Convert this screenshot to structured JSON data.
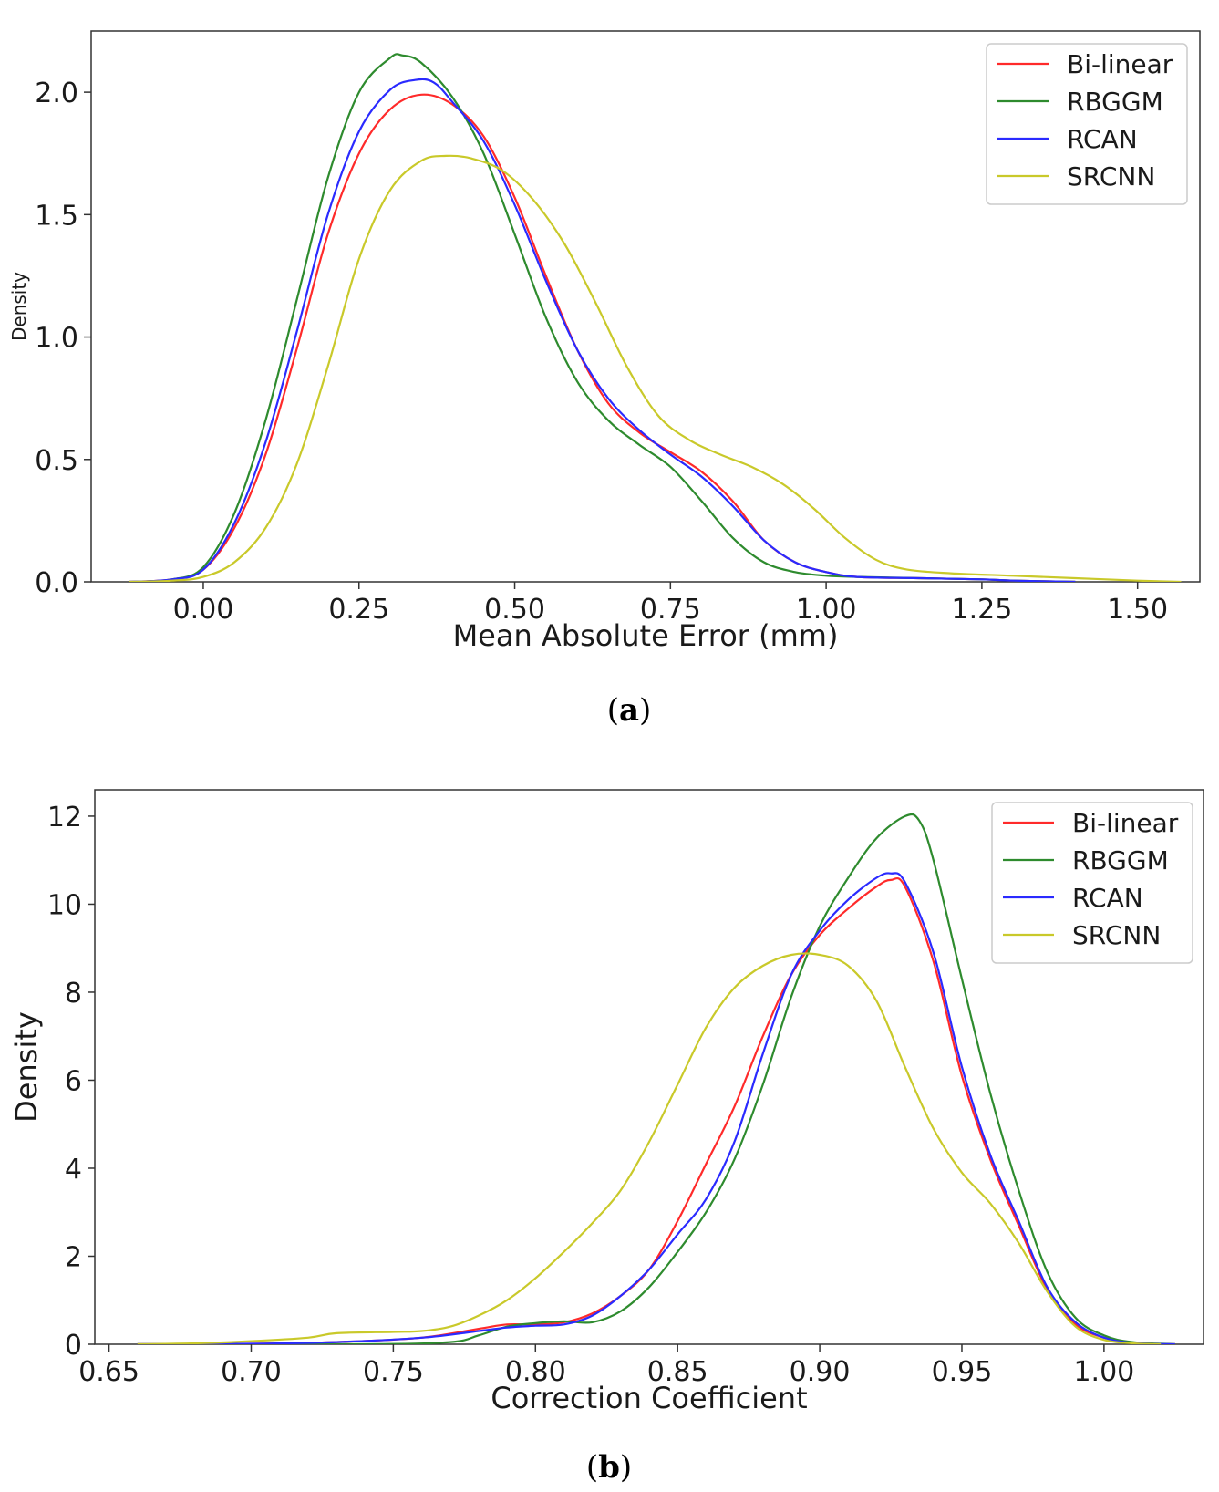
{
  "colors": {
    "Bi-linear": "#ff2a2a",
    "RBGGM": "#2e8b2e",
    "RCAN": "#2a2aff",
    "SRCNN": "#c9c92a"
  },
  "chart_data": [
    {
      "type": "line",
      "kind": "kde",
      "caption_letter": "a",
      "xlabel": "Mean Absolute Error (mm)",
      "ylabel": "Density",
      "xlim": [
        -0.18,
        1.6
      ],
      "ylim": [
        0,
        2.25
      ],
      "xticks": [
        0.0,
        0.25,
        0.5,
        0.75,
        1.0,
        1.25,
        1.5
      ],
      "xtick_labels": [
        "0.00",
        "0.25",
        "0.50",
        "0.75",
        "1.00",
        "1.25",
        "1.50"
      ],
      "yticks": [
        0.0,
        0.5,
        1.0,
        1.5,
        2.0
      ],
      "ytick_labels": [
        "0.0",
        "0.5",
        "1.0",
        "1.5",
        "2.0"
      ],
      "legend_position": "top-right",
      "series": [
        {
          "name": "Bi-linear",
          "points": [
            [
              -0.12,
              0
            ],
            [
              -0.05,
              0.01
            ],
            [
              0,
              0.05
            ],
            [
              0.05,
              0.22
            ],
            [
              0.1,
              0.52
            ],
            [
              0.15,
              0.95
            ],
            [
              0.2,
              1.42
            ],
            [
              0.25,
              1.75
            ],
            [
              0.3,
              1.93
            ],
            [
              0.35,
              1.99
            ],
            [
              0.4,
              1.95
            ],
            [
              0.45,
              1.82
            ],
            [
              0.5,
              1.57
            ],
            [
              0.55,
              1.25
            ],
            [
              0.6,
              0.95
            ],
            [
              0.65,
              0.73
            ],
            [
              0.7,
              0.61
            ],
            [
              0.75,
              0.53
            ],
            [
              0.8,
              0.45
            ],
            [
              0.85,
              0.33
            ],
            [
              0.9,
              0.17
            ],
            [
              0.95,
              0.08
            ],
            [
              1.0,
              0.04
            ],
            [
              1.05,
              0.02
            ],
            [
              1.15,
              0.015
            ],
            [
              1.25,
              0.01
            ],
            [
              1.3,
              0.005
            ],
            [
              1.4,
              0
            ]
          ]
        },
        {
          "name": "RBGGM",
          "points": [
            [
              -0.12,
              0
            ],
            [
              -0.05,
              0.01
            ],
            [
              0,
              0.06
            ],
            [
              0.05,
              0.28
            ],
            [
              0.1,
              0.66
            ],
            [
              0.15,
              1.15
            ],
            [
              0.2,
              1.65
            ],
            [
              0.25,
              2.0
            ],
            [
              0.3,
              2.14
            ],
            [
              0.32,
              2.15
            ],
            [
              0.35,
              2.12
            ],
            [
              0.4,
              1.98
            ],
            [
              0.45,
              1.75
            ],
            [
              0.5,
              1.42
            ],
            [
              0.55,
              1.08
            ],
            [
              0.6,
              0.82
            ],
            [
              0.65,
              0.66
            ],
            [
              0.7,
              0.56
            ],
            [
              0.75,
              0.47
            ],
            [
              0.8,
              0.33
            ],
            [
              0.85,
              0.18
            ],
            [
              0.9,
              0.08
            ],
            [
              0.95,
              0.04
            ],
            [
              1.0,
              0.025
            ],
            [
              1.05,
              0.02
            ],
            [
              1.15,
              0.015
            ],
            [
              1.25,
              0.01
            ],
            [
              1.3,
              0.005
            ],
            [
              1.4,
              0
            ]
          ]
        },
        {
          "name": "RCAN",
          "points": [
            [
              -0.12,
              0
            ],
            [
              -0.05,
              0.01
            ],
            [
              0,
              0.05
            ],
            [
              0.05,
              0.24
            ],
            [
              0.1,
              0.57
            ],
            [
              0.15,
              1.02
            ],
            [
              0.2,
              1.5
            ],
            [
              0.25,
              1.84
            ],
            [
              0.3,
              2.01
            ],
            [
              0.34,
              2.05
            ],
            [
              0.37,
              2.04
            ],
            [
              0.4,
              1.96
            ],
            [
              0.45,
              1.8
            ],
            [
              0.5,
              1.54
            ],
            [
              0.55,
              1.23
            ],
            [
              0.6,
              0.95
            ],
            [
              0.65,
              0.75
            ],
            [
              0.7,
              0.62
            ],
            [
              0.75,
              0.52
            ],
            [
              0.8,
              0.43
            ],
            [
              0.85,
              0.31
            ],
            [
              0.9,
              0.17
            ],
            [
              0.95,
              0.08
            ],
            [
              1.0,
              0.04
            ],
            [
              1.05,
              0.02
            ],
            [
              1.15,
              0.015
            ],
            [
              1.25,
              0.01
            ],
            [
              1.3,
              0.005
            ],
            [
              1.4,
              0
            ]
          ]
        },
        {
          "name": "SRCNN",
          "points": [
            [
              -0.12,
              0
            ],
            [
              -0.05,
              0.005
            ],
            [
              0,
              0.02
            ],
            [
              0.05,
              0.08
            ],
            [
              0.1,
              0.22
            ],
            [
              0.15,
              0.48
            ],
            [
              0.2,
              0.88
            ],
            [
              0.25,
              1.32
            ],
            [
              0.3,
              1.6
            ],
            [
              0.35,
              1.72
            ],
            [
              0.39,
              1.74
            ],
            [
              0.43,
              1.73
            ],
            [
              0.48,
              1.68
            ],
            [
              0.53,
              1.56
            ],
            [
              0.58,
              1.38
            ],
            [
              0.63,
              1.14
            ],
            [
              0.68,
              0.88
            ],
            [
              0.73,
              0.68
            ],
            [
              0.78,
              0.58
            ],
            [
              0.83,
              0.52
            ],
            [
              0.88,
              0.47
            ],
            [
              0.93,
              0.4
            ],
            [
              0.98,
              0.3
            ],
            [
              1.03,
              0.18
            ],
            [
              1.08,
              0.09
            ],
            [
              1.13,
              0.05
            ],
            [
              1.2,
              0.035
            ],
            [
              1.3,
              0.025
            ],
            [
              1.4,
              0.015
            ],
            [
              1.5,
              0.005
            ],
            [
              1.57,
              0
            ]
          ]
        }
      ]
    },
    {
      "type": "line",
      "kind": "kde",
      "caption_letter": "b",
      "xlabel": "Correction Coefficient",
      "ylabel": "Density",
      "xlim": [
        0.645,
        1.035
      ],
      "ylim": [
        0,
        12.6
      ],
      "xticks": [
        0.65,
        0.7,
        0.75,
        0.8,
        0.85,
        0.9,
        0.95,
        1.0
      ],
      "xtick_labels": [
        "0.65",
        "0.70",
        "0.75",
        "0.80",
        "0.85",
        "0.90",
        "0.95",
        "1.00"
      ],
      "yticks": [
        0,
        2,
        4,
        6,
        8,
        10,
        12
      ],
      "ytick_labels": [
        "0",
        "2",
        "4",
        "6",
        "8",
        "10",
        "12"
      ],
      "legend_position": "top-right",
      "series": [
        {
          "name": "Bi-linear",
          "points": [
            [
              0.66,
              0
            ],
            [
              0.7,
              0.01
            ],
            [
              0.73,
              0.05
            ],
            [
              0.76,
              0.15
            ],
            [
              0.78,
              0.35
            ],
            [
              0.79,
              0.45
            ],
            [
              0.8,
              0.45
            ],
            [
              0.81,
              0.5
            ],
            [
              0.82,
              0.7
            ],
            [
              0.83,
              1.1
            ],
            [
              0.84,
              1.7
            ],
            [
              0.85,
              2.8
            ],
            [
              0.86,
              4.1
            ],
            [
              0.87,
              5.4
            ],
            [
              0.88,
              7.0
            ],
            [
              0.89,
              8.4
            ],
            [
              0.9,
              9.3
            ],
            [
              0.91,
              9.9
            ],
            [
              0.92,
              10.4
            ],
            [
              0.925,
              10.55
            ],
            [
              0.93,
              10.4
            ],
            [
              0.94,
              8.7
            ],
            [
              0.95,
              6.1
            ],
            [
              0.96,
              4.2
            ],
            [
              0.97,
              2.7
            ],
            [
              0.98,
              1.25
            ],
            [
              0.99,
              0.45
            ],
            [
              1.0,
              0.15
            ],
            [
              1.01,
              0.03
            ],
            [
              1.025,
              0
            ]
          ]
        },
        {
          "name": "RBGGM",
          "points": [
            [
              0.66,
              0
            ],
            [
              0.74,
              0
            ],
            [
              0.77,
              0.05
            ],
            [
              0.78,
              0.2
            ],
            [
              0.79,
              0.4
            ],
            [
              0.8,
              0.48
            ],
            [
              0.81,
              0.52
            ],
            [
              0.82,
              0.5
            ],
            [
              0.83,
              0.75
            ],
            [
              0.84,
              1.3
            ],
            [
              0.85,
              2.1
            ],
            [
              0.86,
              3.0
            ],
            [
              0.87,
              4.2
            ],
            [
              0.88,
              5.9
            ],
            [
              0.89,
              7.9
            ],
            [
              0.9,
              9.5
            ],
            [
              0.91,
              10.6
            ],
            [
              0.92,
              11.5
            ],
            [
              0.93,
              12.0
            ],
            [
              0.935,
              11.9
            ],
            [
              0.94,
              11.0
            ],
            [
              0.95,
              8.3
            ],
            [
              0.96,
              5.7
            ],
            [
              0.97,
              3.5
            ],
            [
              0.98,
              1.65
            ],
            [
              0.99,
              0.6
            ],
            [
              1.0,
              0.2
            ],
            [
              1.01,
              0.05
            ],
            [
              1.025,
              0
            ]
          ]
        },
        {
          "name": "RCAN",
          "points": [
            [
              0.66,
              0
            ],
            [
              0.7,
              0.01
            ],
            [
              0.73,
              0.05
            ],
            [
              0.76,
              0.15
            ],
            [
              0.78,
              0.3
            ],
            [
              0.79,
              0.38
            ],
            [
              0.8,
              0.42
            ],
            [
              0.81,
              0.45
            ],
            [
              0.82,
              0.65
            ],
            [
              0.83,
              1.1
            ],
            [
              0.84,
              1.7
            ],
            [
              0.85,
              2.5
            ],
            [
              0.86,
              3.3
            ],
            [
              0.87,
              4.6
            ],
            [
              0.88,
              6.6
            ],
            [
              0.89,
              8.4
            ],
            [
              0.9,
              9.4
            ],
            [
              0.91,
              10.1
            ],
            [
              0.92,
              10.6
            ],
            [
              0.925,
              10.7
            ],
            [
              0.93,
              10.5
            ],
            [
              0.94,
              8.9
            ],
            [
              0.95,
              6.3
            ],
            [
              0.96,
              4.3
            ],
            [
              0.97,
              2.8
            ],
            [
              0.98,
              1.3
            ],
            [
              0.99,
              0.5
            ],
            [
              1.0,
              0.15
            ],
            [
              1.01,
              0.03
            ],
            [
              1.025,
              0
            ]
          ]
        },
        {
          "name": "SRCNN",
          "points": [
            [
              0.66,
              0
            ],
            [
              0.68,
              0.02
            ],
            [
              0.7,
              0.07
            ],
            [
              0.72,
              0.15
            ],
            [
              0.73,
              0.25
            ],
            [
              0.75,
              0.28
            ],
            [
              0.76,
              0.3
            ],
            [
              0.77,
              0.4
            ],
            [
              0.78,
              0.65
            ],
            [
              0.79,
              1.0
            ],
            [
              0.8,
              1.5
            ],
            [
              0.81,
              2.1
            ],
            [
              0.82,
              2.75
            ],
            [
              0.83,
              3.5
            ],
            [
              0.84,
              4.6
            ],
            [
              0.85,
              5.9
            ],
            [
              0.86,
              7.2
            ],
            [
              0.87,
              8.1
            ],
            [
              0.88,
              8.6
            ],
            [
              0.89,
              8.85
            ],
            [
              0.9,
              8.85
            ],
            [
              0.91,
              8.6
            ],
            [
              0.92,
              7.8
            ],
            [
              0.93,
              6.3
            ],
            [
              0.94,
              4.9
            ],
            [
              0.95,
              3.9
            ],
            [
              0.96,
              3.2
            ],
            [
              0.97,
              2.3
            ],
            [
              0.98,
              1.2
            ],
            [
              0.99,
              0.4
            ],
            [
              1.0,
              0.1
            ],
            [
              1.01,
              0.02
            ],
            [
              1.02,
              0
            ]
          ]
        }
      ]
    }
  ]
}
